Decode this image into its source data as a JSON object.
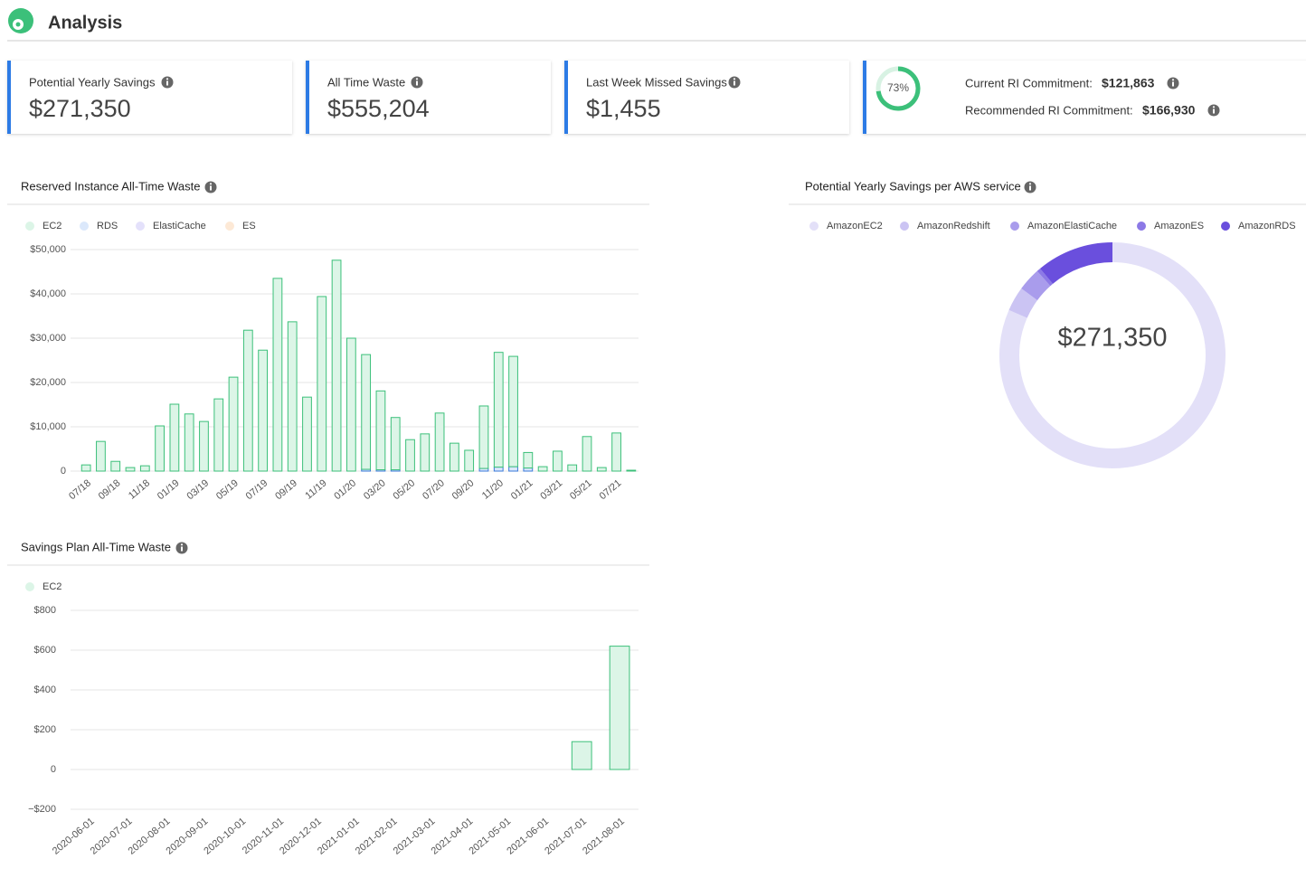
{
  "header": {
    "title": "Analysis"
  },
  "cards": [
    {
      "label": "Potential Yearly Savings",
      "value": "$271,350"
    },
    {
      "label": "All Time Waste",
      "value": "$555,204"
    },
    {
      "label": "Last Week Missed Savings",
      "value": "$1,455"
    }
  ],
  "commitment": {
    "gauge": {
      "value": 73,
      "label": "73%",
      "color": "#3cc07a"
    },
    "current_label": "Current RI Commitment:",
    "current_value": "$121,863",
    "recommended_label": "Recommended RI Commitment:",
    "recommended_value": "$166,930"
  },
  "chart_data": [
    {
      "type": "bar",
      "stacked": true,
      "grid": true,
      "title": "Reserved Instance All-Time Waste",
      "categories": [
        "07/18",
        null,
        "09/18",
        null,
        "11/18",
        null,
        "01/19",
        null,
        "03/19",
        null,
        "05/19",
        null,
        "07/19",
        null,
        "09/19",
        null,
        "11/19",
        null,
        "01/20",
        null,
        "03/20",
        null,
        "05/20",
        null,
        "07/20",
        null,
        "09/20",
        null,
        "11/20",
        null,
        "01/21",
        null,
        "03/21",
        null,
        "05/21",
        null,
        "07/21",
        null
      ],
      "series": [
        {
          "name": "EC2",
          "color": "#dcf5e7",
          "edge_color": "#3cc07a",
          "values": [
            1400,
            6700,
            2200,
            800,
            1200,
            10200,
            15100,
            12900,
            11200,
            16300,
            21200,
            31800,
            27300,
            43500,
            33700,
            16700,
            39400,
            47600,
            30000,
            25900,
            17800,
            11800,
            7100,
            8400,
            13100,
            6300,
            4700,
            14100,
            25900,
            24900,
            3500,
            1000,
            4500,
            1400,
            7800,
            800,
            8600,
            200
          ]
        },
        {
          "name": "RDS",
          "color": "#dbe8fb",
          "edge_color": "#3a78d8",
          "values": [
            0,
            0,
            0,
            0,
            0,
            0,
            0,
            0,
            0,
            0,
            0,
            0,
            0,
            0,
            0,
            0,
            0,
            0,
            0,
            400,
            300,
            300,
            0,
            0,
            0,
            0,
            0,
            600,
            900,
            1000,
            700,
            0,
            0,
            0,
            0,
            0,
            0,
            0
          ]
        },
        {
          "name": "ElastiCache",
          "color": "#e4e1fb",
          "edge_color": "#8c79e6",
          "values": [
            0,
            0,
            0,
            0,
            0,
            0,
            0,
            0,
            0,
            0,
            0,
            0,
            0,
            0,
            0,
            0,
            0,
            0,
            0,
            0,
            0,
            0,
            0,
            0,
            0,
            0,
            0,
            0,
            0,
            0,
            0,
            0,
            0,
            0,
            0,
            0,
            0,
            0
          ]
        },
        {
          "name": "ES",
          "color": "#fde9d6",
          "edge_color": "#f0a860",
          "values": [
            0,
            0,
            0,
            0,
            0,
            0,
            0,
            0,
            0,
            0,
            0,
            0,
            0,
            0,
            0,
            0,
            0,
            0,
            0,
            0,
            0,
            0,
            0,
            0,
            0,
            0,
            0,
            0,
            0,
            0,
            0,
            0,
            0,
            0,
            0,
            0,
            0,
            0
          ]
        }
      ],
      "ylim": [
        0,
        50000
      ],
      "yticks": [
        0,
        {
          "value": 10000,
          "label": "$10,000"
        },
        {
          "value": 20000,
          "label": "$20,000"
        },
        {
          "value": 30000,
          "label": "$30,000"
        },
        {
          "value": 40000,
          "label": "$40,000"
        },
        {
          "value": 50000,
          "label": "$50,000"
        }
      ]
    },
    {
      "type": "bar",
      "stacked": true,
      "grid": true,
      "title": "Savings Plan All-Time Waste",
      "categories": [
        "2020-06-01",
        "2020-07-01",
        "2020-08-01",
        "2020-09-01",
        "2020-10-01",
        "2020-11-01",
        "2020-12-01",
        "2021-01-01",
        "2021-02-01",
        "2021-03-01",
        "2021-04-01",
        "2021-05-01",
        "2021-06-01",
        "2021-07-01",
        "2021-08-01"
      ],
      "series": [
        {
          "name": "EC2",
          "color": "#dcf5e7",
          "edge_color": "#3cc07a",
          "values": [
            0,
            0,
            0,
            0,
            0,
            0,
            0,
            0,
            0,
            0,
            0,
            0,
            0,
            140,
            620
          ]
        }
      ],
      "ylim": [
        -200,
        800
      ],
      "yticks": [
        {
          "value": -200,
          "label": "−$200"
        },
        0,
        {
          "value": 200,
          "label": "$200"
        },
        {
          "value": 400,
          "label": "$400"
        },
        {
          "value": 600,
          "label": "$600"
        },
        {
          "value": 800,
          "label": "$800"
        }
      ]
    },
    {
      "type": "donut",
      "title": "Potential Yearly Savings per AWS service",
      "center_label": "$271,350",
      "categories": [
        "AmazonEC2",
        "AmazonRedshift",
        "AmazonElastiCache",
        "AmazonES",
        "AmazonRDS"
      ],
      "values": [
        221350,
        9500,
        9000,
        1500,
        30000
      ],
      "colors": [
        "#e3e0f8",
        "#cbc4f3",
        "#a99cec",
        "#8c79e6",
        "#6a4fdd"
      ]
    }
  ]
}
